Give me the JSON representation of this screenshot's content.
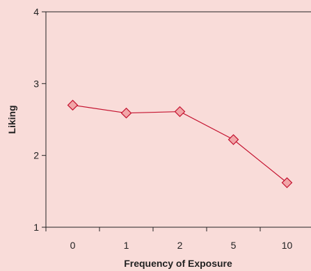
{
  "chart_data": {
    "type": "line",
    "categories": [
      "0",
      "1",
      "2",
      "5",
      "10"
    ],
    "series": [
      {
        "values": [
          2.7,
          2.59,
          2.61,
          2.22,
          1.62
        ]
      }
    ],
    "xlabel": "Frequency of Exposure",
    "ylabel": "Liking",
    "ylim": [
      1,
      4
    ],
    "yticks": [
      "1",
      "2",
      "3",
      "4"
    ],
    "grid": false,
    "legend": "none",
    "colors": {
      "background": "#f9dcd9",
      "line": "#c4122f",
      "marker_fill": "#f1a6a8",
      "axis": "#222222"
    }
  }
}
